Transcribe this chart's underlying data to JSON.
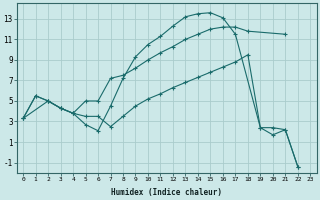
{
  "background_color": "#cce8e8",
  "grid_color": "#aacccc",
  "line_color": "#1a6b6b",
  "xlabel": "Humidex (Indice chaleur)",
  "xlim": [
    -0.5,
    23.5
  ],
  "ylim": [
    -2.0,
    14.5
  ],
  "xticks": [
    0,
    1,
    2,
    3,
    4,
    5,
    6,
    7,
    8,
    9,
    10,
    11,
    12,
    13,
    14,
    15,
    16,
    17,
    18,
    19,
    20,
    21,
    22,
    23
  ],
  "yticks": [
    -1,
    1,
    3,
    5,
    7,
    9,
    11,
    13
  ],
  "curves": [
    {
      "x": [
        0,
        1,
        2,
        3,
        4,
        5,
        6,
        7,
        8,
        9,
        10,
        11,
        12,
        13,
        14,
        15,
        16,
        17,
        19,
        20,
        21,
        22
      ],
      "y": [
        3.3,
        5.5,
        5.0,
        4.3,
        3.8,
        2.7,
        2.1,
        4.5,
        7.2,
        9.3,
        10.5,
        11.3,
        12.3,
        13.2,
        13.5,
        13.6,
        13.1,
        11.5,
        2.4,
        1.7,
        2.2,
        -1.4
      ]
    },
    {
      "x": [
        0,
        1,
        2,
        3,
        4,
        5,
        6,
        7,
        8,
        9,
        10,
        11,
        12,
        13,
        14,
        15,
        16,
        17,
        18,
        21
      ],
      "y": [
        3.3,
        5.5,
        5.0,
        4.3,
        3.8,
        5.0,
        5.0,
        7.2,
        7.5,
        8.2,
        9.0,
        9.7,
        10.3,
        11.0,
        11.5,
        12.0,
        12.2,
        12.2,
        11.8,
        11.5
      ]
    },
    {
      "x": [
        0,
        2,
        3,
        4,
        5,
        6,
        7,
        8,
        9,
        10,
        11,
        12,
        13,
        14,
        15,
        16,
        17,
        18,
        19,
        20,
        21,
        22
      ],
      "y": [
        3.3,
        5.0,
        4.3,
        3.8,
        3.5,
        3.5,
        2.5,
        3.5,
        4.5,
        5.2,
        5.7,
        6.3,
        6.8,
        7.3,
        7.8,
        8.3,
        8.8,
        9.5,
        2.4,
        2.4,
        2.2,
        -1.4
      ]
    }
  ]
}
